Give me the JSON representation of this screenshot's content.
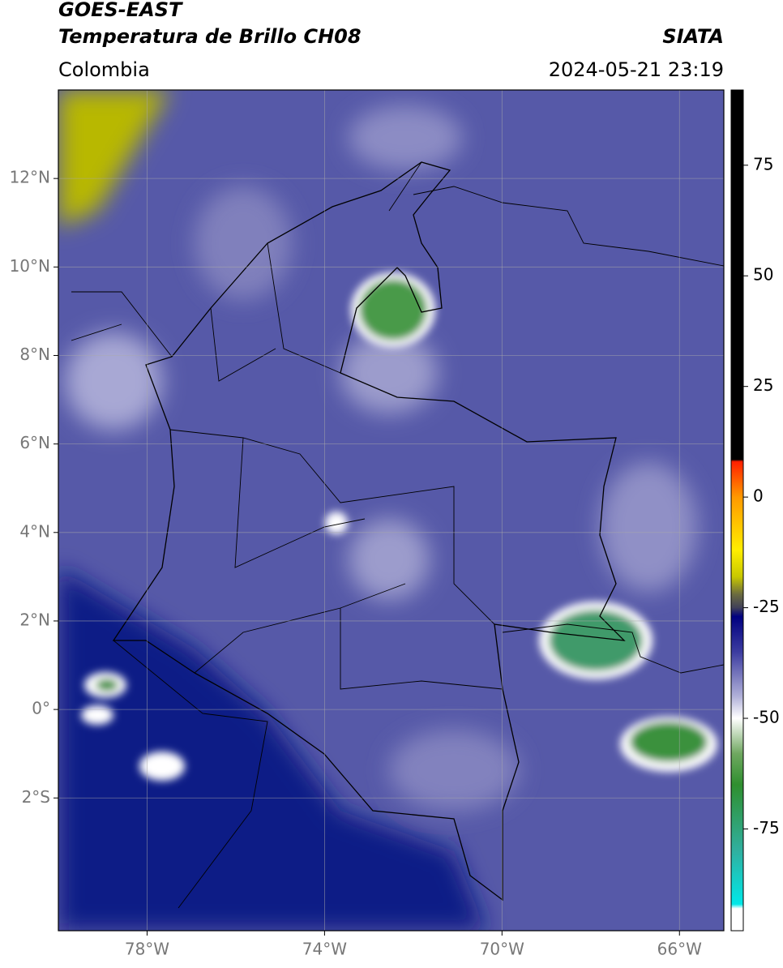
{
  "header": {
    "title": "GOES-EAST",
    "subtitle": "Temperatura de Brillo CH08",
    "source": "SIATA",
    "region": "Colombia",
    "datetime": "2024-05-21 23:19"
  },
  "map": {
    "xlim": [
      -80,
      -65
    ],
    "ylim": [
      -5,
      14
    ],
    "xticks": [
      {
        "value": -78,
        "label": "78°W"
      },
      {
        "value": -74,
        "label": "74°W"
      },
      {
        "value": -70,
        "label": "70°W"
      },
      {
        "value": -66,
        "label": "66°W"
      }
    ],
    "yticks": [
      {
        "value": 12,
        "label": "12°N"
      },
      {
        "value": 10,
        "label": "10°N"
      },
      {
        "value": 8,
        "label": "8°N"
      },
      {
        "value": 6,
        "label": "6°N"
      },
      {
        "value": 4,
        "label": "4°N"
      },
      {
        "value": 2,
        "label": "2°N"
      },
      {
        "value": 0,
        "label": "0°"
      },
      {
        "value": -2,
        "label": "2°S"
      }
    ],
    "grid": true,
    "colorbar": {
      "lim": [
        -98,
        92
      ],
      "ticks": [
        75,
        50,
        25,
        0,
        -25,
        -50,
        -75
      ],
      "stops": [
        {
          "value": 92,
          "color": "#000000"
        },
        {
          "value": 8.5,
          "color": "#000000"
        },
        {
          "value": 8,
          "color": "#ff2000"
        },
        {
          "value": 0,
          "color": "#ff9900"
        },
        {
          "value": -12,
          "color": "#ffee00"
        },
        {
          "value": -18,
          "color": "#c8c800"
        },
        {
          "value": -22,
          "color": "#6b6b40"
        },
        {
          "value": -25,
          "color": "#404058"
        },
        {
          "value": -27,
          "color": "#000080"
        },
        {
          "value": -35,
          "color": "#3c3ca0"
        },
        {
          "value": -45,
          "color": "#b0b0d8"
        },
        {
          "value": -50,
          "color": "#ffffff"
        },
        {
          "value": -58,
          "color": "#6fa860"
        },
        {
          "value": -65,
          "color": "#2f8f2f"
        },
        {
          "value": -80,
          "color": "#30b0a0"
        },
        {
          "value": -92,
          "color": "#00e8e8"
        },
        {
          "value": -93,
          "color": "#ffffff"
        },
        {
          "value": -98,
          "color": "#ffffff"
        }
      ]
    }
  }
}
